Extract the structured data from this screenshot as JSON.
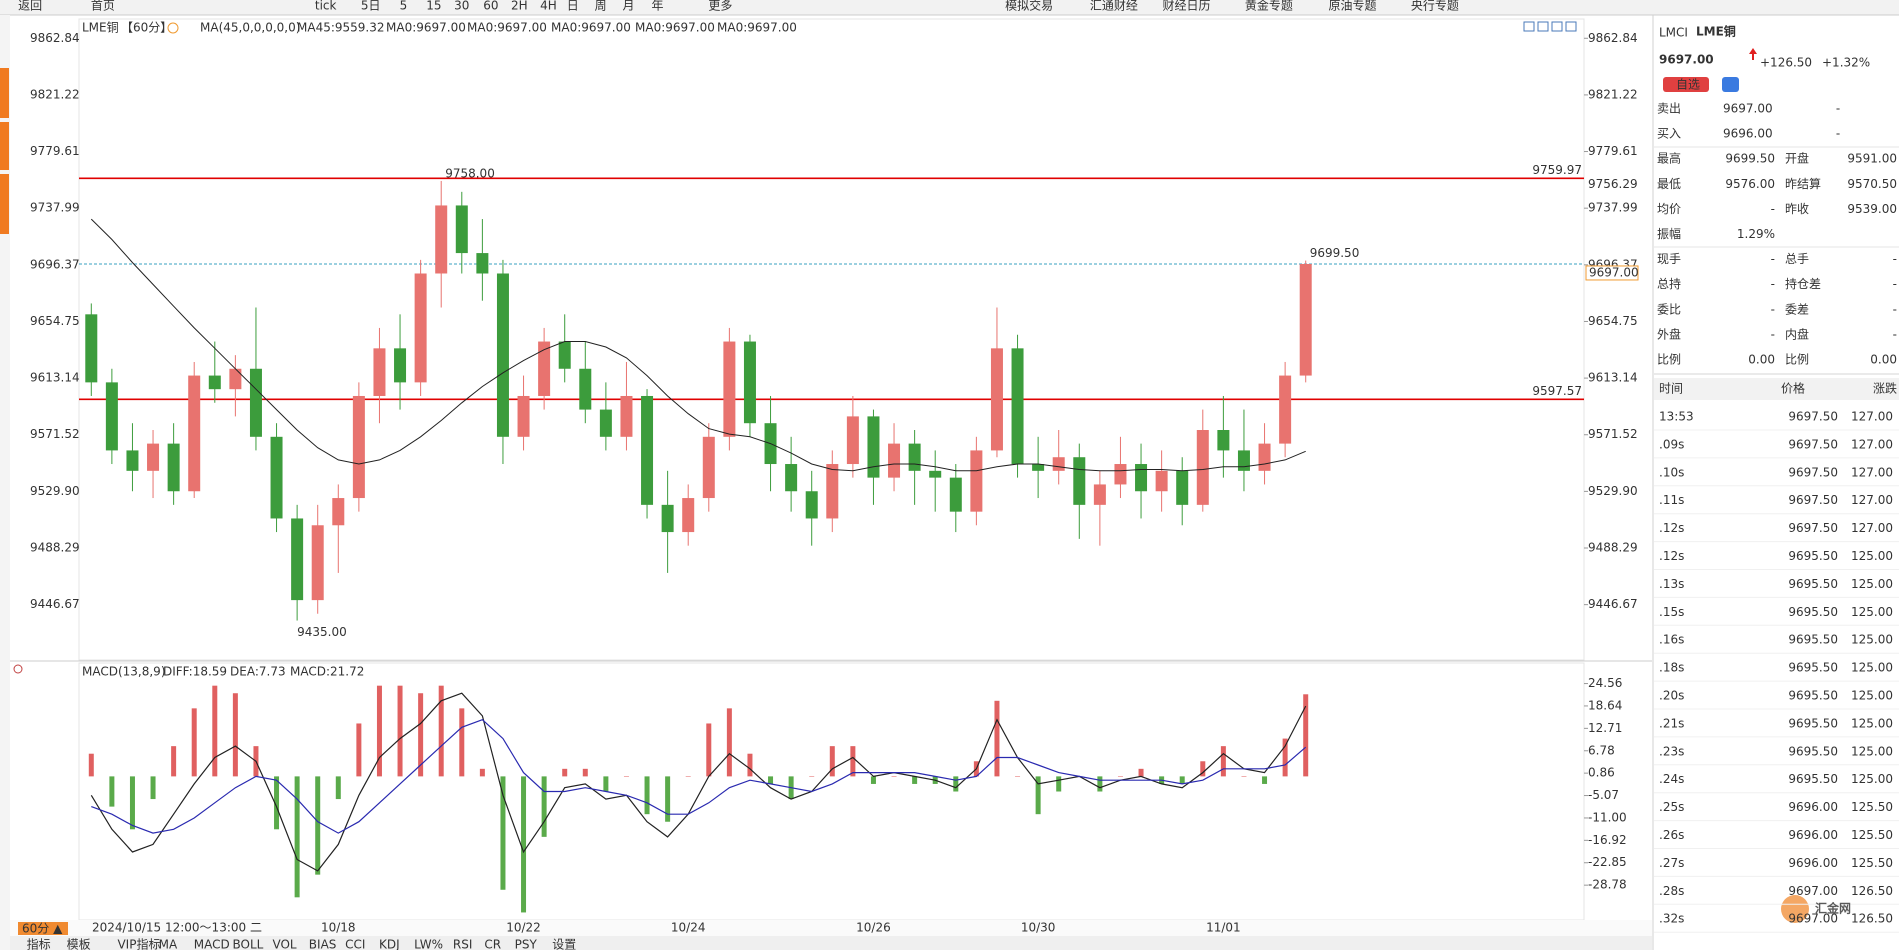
{
  "toolbar": [
    "返回",
    "首页",
    "tick",
    "5日",
    "5",
    "15",
    "30",
    "60",
    "2H",
    "4H",
    "日",
    "周",
    "月",
    "年",
    "更多",
    "模拟交易",
    "汇通财经",
    "财经日历",
    "黄金专题",
    "原油专题",
    "央行专题"
  ],
  "chart_data": [
    {
      "type": "candlestick",
      "title": "LME铜",
      "period": "【60分】",
      "indicator": "MA(45,0,0,0,0,0)",
      "legend": [
        {
          "text": "MA45:9559.32",
          "color": "#222222"
        },
        {
          "text": "MA0:9697.00",
          "color": "#1a1aa0"
        },
        {
          "text": "MA0:9697.00",
          "color": "#e020e0"
        },
        {
          "text": "MA0:9697.00",
          "color": "#f09a00"
        },
        {
          "text": "MA0:9697.00",
          "color": "#999999"
        },
        {
          "text": "MA0:9697.00",
          "color": "#e03030"
        }
      ],
      "categories": [
        null,
        null,
        null,
        null,
        null,
        null,
        null,
        null,
        null,
        null,
        null,
        null,
        "10/18",
        null,
        null,
        null,
        null,
        null,
        null,
        null,
        null,
        "10/22",
        null,
        null,
        null,
        null,
        null,
        null,
        null,
        "10/24",
        null,
        null,
        null,
        null,
        null,
        null,
        null,
        null,
        "10/26",
        null,
        null,
        null,
        null,
        null,
        null,
        null,
        "10/30",
        null,
        null,
        null,
        null,
        null,
        null,
        null,
        null,
        "11/01",
        null,
        null,
        null,
        null
      ],
      "candles": [
        [
          9660,
          9668,
          9600,
          9610
        ],
        [
          9610,
          9620,
          9550,
          9560
        ],
        [
          9560,
          9580,
          9530,
          9545
        ],
        [
          9545,
          9575,
          9525,
          9565
        ],
        [
          9565,
          9580,
          9520,
          9530
        ],
        [
          9530,
          9625,
          9525,
          9615
        ],
        [
          9615,
          9640,
          9595,
          9605
        ],
        [
          9605,
          9630,
          9585,
          9620
        ],
        [
          9620,
          9665,
          9560,
          9570
        ],
        [
          9570,
          9580,
          9500,
          9510
        ],
        [
          9510,
          9520,
          9435,
          9450
        ],
        [
          9450,
          9520,
          9440,
          9505
        ],
        [
          9505,
          9535,
          9470,
          9525
        ],
        [
          9525,
          9610,
          9515,
          9600
        ],
        [
          9600,
          9650,
          9580,
          9635
        ],
        [
          9635,
          9660,
          9590,
          9610
        ],
        [
          9610,
          9700,
          9600,
          9690
        ],
        [
          9690,
          9758,
          9665,
          9740
        ],
        [
          9740,
          9750,
          9690,
          9705
        ],
        [
          9705,
          9730,
          9670,
          9690
        ],
        [
          9690,
          9700,
          9550,
          9570
        ],
        [
          9570,
          9615,
          9560,
          9600
        ],
        [
          9600,
          9650,
          9590,
          9640
        ],
        [
          9640,
          9660,
          9610,
          9620
        ],
        [
          9620,
          9640,
          9580,
          9590
        ],
        [
          9590,
          9610,
          9560,
          9570
        ],
        [
          9570,
          9625,
          9560,
          9600
        ],
        [
          9600,
          9605,
          9510,
          9520
        ],
        [
          9520,
          9545,
          9470,
          9500
        ],
        [
          9500,
          9535,
          9490,
          9525
        ],
        [
          9525,
          9580,
          9515,
          9570
        ],
        [
          9570,
          9650,
          9560,
          9640
        ],
        [
          9640,
          9645,
          9570,
          9580
        ],
        [
          9580,
          9600,
          9530,
          9550
        ],
        [
          9550,
          9570,
          9515,
          9530
        ],
        [
          9530,
          9545,
          9490,
          9510
        ],
        [
          9510,
          9560,
          9500,
          9550
        ],
        [
          9550,
          9600,
          9540,
          9585
        ],
        [
          9585,
          9590,
          9520,
          9540
        ],
        [
          9540,
          9580,
          9530,
          9565
        ],
        [
          9565,
          9575,
          9520,
          9545
        ],
        [
          9545,
          9560,
          9515,
          9540
        ],
        [
          9540,
          9550,
          9500,
          9515
        ],
        [
          9515,
          9570,
          9505,
          9560
        ],
        [
          9560,
          9665,
          9555,
          9635
        ],
        [
          9635,
          9645,
          9540,
          9550
        ],
        [
          9550,
          9570,
          9525,
          9545
        ],
        [
          9545,
          9575,
          9535,
          9555
        ],
        [
          9555,
          9565,
          9495,
          9520
        ],
        [
          9520,
          9545,
          9490,
          9535
        ],
        [
          9535,
          9570,
          9525,
          9550
        ],
        [
          9550,
          9565,
          9510,
          9530
        ],
        [
          9530,
          9560,
          9515,
          9545
        ],
        [
          9545,
          9555,
          9505,
          9520
        ],
        [
          9520,
          9590,
          9515,
          9575
        ],
        [
          9575,
          9600,
          9540,
          9560
        ],
        [
          9560,
          9590,
          9530,
          9545
        ],
        [
          9545,
          9580,
          9535,
          9565
        ],
        [
          9565,
          9625,
          9555,
          9615
        ],
        [
          9615,
          9699.5,
          9610,
          9697
        ]
      ],
      "up_color": "#e8736f",
      "down_color": "#3c9c3c",
      "ma_values": [
        9730,
        9715,
        9698,
        9682,
        9666,
        9650,
        9635,
        9620,
        9605,
        9590,
        9575,
        9562,
        9553,
        9550,
        9553,
        9560,
        9570,
        9582,
        9595,
        9607,
        9617,
        9626,
        9634,
        9640,
        9640,
        9636,
        9628,
        9615,
        9600,
        9587,
        9576,
        9572,
        9570,
        9565,
        9558,
        9550,
        9546,
        9545,
        9548,
        9550,
        9550,
        9548,
        9545,
        9545,
        9548,
        9550,
        9550,
        9548,
        9546,
        9545,
        9545,
        9546,
        9546,
        9545,
        9546,
        9548,
        9548,
        9550,
        9553,
        9559.32
      ],
      "ma_color": "#222222",
      "ylim": [
        9406,
        9877
      ],
      "yticks": [
        9862.84,
        9821.22,
        9779.61,
        9737.99,
        9696.37,
        9654.75,
        9613.14,
        9571.52,
        {
          "value": 9529.9,
          "label": "9529.90"
        },
        9488.29,
        9446.67
      ],
      "levels": [
        {
          "value": 9759.97,
          "color": "#e00000"
        },
        {
          "value": 9597.57,
          "color": "#e00000"
        }
      ],
      "current": {
        "value": 9697,
        "label": "9697.00",
        "color": "#f09a30",
        "line_color": "#3aa0c0"
      },
      "side_mark": {
        "value": 9756.29,
        "color": "#f09a30"
      },
      "annotations": [
        {
          "index": 17,
          "value": 9758,
          "label": "9758.00",
          "color": "#e03030"
        },
        {
          "index": 10,
          "value": 9435,
          "label": "9435.00",
          "color": "#3a9a3a"
        },
        {
          "index": 59,
          "value": 9699.5,
          "label": "9699.50",
          "color": "#e03030"
        }
      ],
      "crosshair_time": "2024/10/15 12:00～13:00 二",
      "period_button": "60分 ▲"
    },
    {
      "type": "macd",
      "title": "MACD(13,8,9)",
      "legend": [
        {
          "text": "DIFF:18.59",
          "color": "#222222"
        },
        {
          "text": "DEA:7.73",
          "color": "#2a2ab0"
        },
        {
          "text": "MACD:21.72",
          "color": "#e020e0"
        }
      ],
      "diff": [
        -5,
        -14,
        -20,
        -18,
        -10,
        -2,
        5,
        8,
        4,
        -8,
        -22,
        -25,
        -18,
        -5,
        5,
        10,
        14,
        20,
        22,
        16,
        -5,
        -20,
        -12,
        -3,
        -2,
        -6,
        -5,
        -12,
        -16,
        -10,
        0,
        6,
        2,
        -3,
        -6,
        -4,
        2,
        5,
        0,
        1,
        0,
        -1,
        -3,
        2,
        15,
        5,
        -2,
        -1,
        0,
        -3,
        -1,
        0,
        -2,
        -3,
        1,
        6,
        2,
        1,
        8,
        18.59
      ],
      "dea": [
        -8,
        -10,
        -13,
        -15,
        -14,
        -11,
        -7,
        -3,
        0,
        -1,
        -6,
        -12,
        -15,
        -12,
        -7,
        -2,
        3,
        8,
        13,
        15,
        10,
        1,
        -4,
        -4,
        -3,
        -4,
        -5,
        -7,
        -10,
        -10,
        -7,
        -3,
        -1,
        -2,
        -3,
        -4,
        -2,
        1,
        1,
        1,
        1,
        0,
        -1,
        0,
        5,
        5,
        3,
        1,
        0,
        -1,
        -1,
        -1,
        -1,
        -2,
        -1,
        2,
        2,
        2,
        3,
        7.73
      ],
      "macd": [
        6,
        -8,
        -14,
        -6,
        8,
        18,
        24,
        22,
        8,
        -14,
        -32,
        -26,
        -6,
        14,
        24,
        24,
        22,
        24,
        18,
        2,
        -30,
        -36,
        -16,
        2,
        2,
        -4,
        0,
        -10,
        -12,
        0,
        14,
        18,
        6,
        -2,
        -6,
        0,
        8,
        8,
        -2,
        0,
        -2,
        -2,
        -4,
        4,
        20,
        0,
        -10,
        -4,
        0,
        -4,
        0,
        2,
        -2,
        -2,
        4,
        8,
        0,
        -2,
        10,
        21.72
      ],
      "diff_color": "#222222",
      "dea_color": "#2a2ab0",
      "up_color": "#e06060",
      "down_color": "#5aaa4a",
      "ylim": [
        -38,
        30
      ],
      "yticks": [
        24.56,
        18.64,
        12.71,
        6.78,
        0.86,
        -5.07,
        {
          "value": -11,
          "label": "-11.00"
        },
        -16.92,
        -22.85,
        -28.78
      ]
    }
  ],
  "bottom_tabs": [
    "指标",
    "模板",
    "VIP指标",
    "MA",
    "MACD",
    "BOLL",
    "VOL",
    "BIAS",
    "CCI",
    "KDJ",
    "LW%",
    "RSI",
    "CR",
    "PSY",
    "设置"
  ],
  "quote": {
    "code": "LMCI",
    "name": "LME铜",
    "price": "9697.00",
    "change": "+126.50",
    "pct": "+1.32%",
    "button": "自选",
    "rows": [
      [
        "卖出",
        {
          "text": "9697.00",
          "color": "#e02020"
        },
        "-"
      ],
      [
        "买入",
        {
          "text": "9696.00",
          "color": "#e02020"
        },
        "-"
      ],
      [
        "最高",
        {
          "text": "9699.50",
          "color": "#e02020"
        },
        "开盘",
        {
          "text": "9591.00",
          "color": "#e02020"
        }
      ],
      [
        "最低",
        {
          "text": "9576.00",
          "color": "#e02020"
        },
        "昨结算",
        "9570.50"
      ],
      [
        "均价",
        "-",
        "昨收",
        "9539.00"
      ],
      [
        "振幅",
        "1.29%"
      ],
      [
        "现手",
        "-",
        "总手",
        "-"
      ],
      [
        "总持",
        "-",
        "持仓差",
        "-"
      ],
      [
        "委比",
        "-",
        "委差",
        "-"
      ],
      [
        "外盘",
        "-",
        "内盘",
        "-"
      ],
      [
        "比例",
        "0.00",
        "比例",
        "0.00"
      ]
    ],
    "trades_header": [
      "时间",
      "价格",
      "涨跌"
    ],
    "trade_color": "#e02020",
    "trades": [
      [
        {
          "text": "13:53",
          "color": "#f0a030"
        },
        "9697.50",
        "127.00"
      ],
      [
        ".09s",
        "9697.50",
        "127.00"
      ],
      [
        ".10s",
        "9697.50",
        "127.00"
      ],
      [
        ".11s",
        "9697.50",
        "127.00"
      ],
      [
        ".12s",
        "9697.50",
        "127.00"
      ],
      [
        ".12s",
        "9695.50",
        "125.00"
      ],
      [
        ".13s",
        "9695.50",
        "125.00"
      ],
      [
        ".15s",
        "9695.50",
        "125.00"
      ],
      [
        ".16s",
        "9695.50",
        "125.00"
      ],
      [
        ".18s",
        "9695.50",
        "125.00"
      ],
      [
        ".20s",
        "9695.50",
        "125.00"
      ],
      [
        ".21s",
        "9695.50",
        "125.00"
      ],
      [
        ".23s",
        "9695.50",
        "125.00"
      ],
      [
        ".24s",
        "9695.50",
        "125.00"
      ],
      [
        ".25s",
        "9696.00",
        "125.50"
      ],
      [
        ".26s",
        "9696.00",
        "125.50"
      ],
      [
        ".27s",
        "9696.00",
        "125.50"
      ],
      [
        ".28s",
        "9697.00",
        "126.50"
      ],
      [
        ".32s",
        "9697.00",
        "126.50"
      ]
    ]
  },
  "watermark": "汇金网"
}
